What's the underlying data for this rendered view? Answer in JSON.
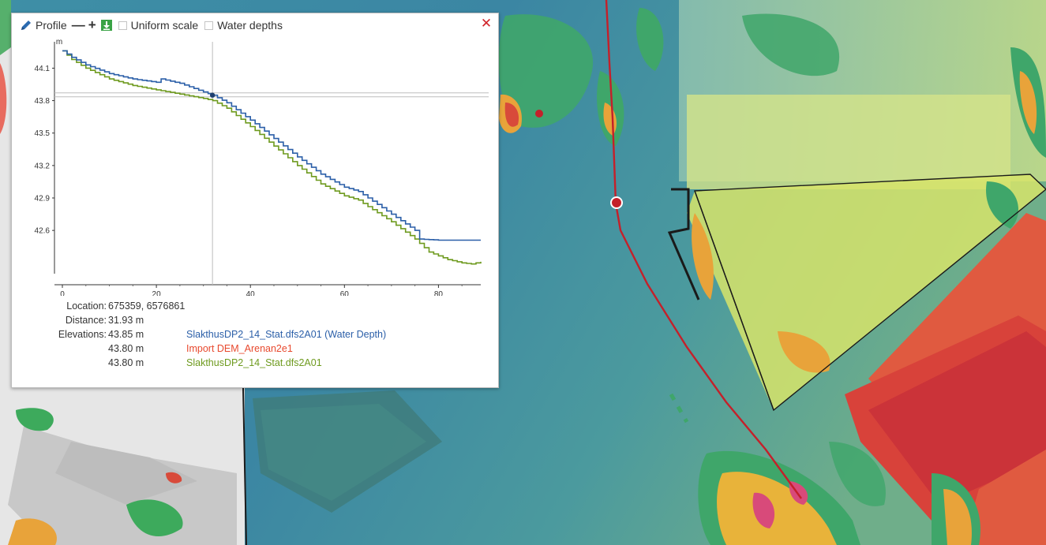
{
  "profile_panel": {
    "title": "Profile",
    "minus_label": "—",
    "plus_label": "+",
    "download_icon": "download-icon",
    "uniform_scale_label": "Uniform scale",
    "uniform_scale_checked": false,
    "water_depths_label": "Water depths",
    "water_depths_checked": false,
    "close_label": "✕"
  },
  "chart_data": {
    "type": "line",
    "ylabel": "m",
    "xlabel": "",
    "xlim": [
      0,
      89
    ],
    "ylim": [
      42.2,
      44.3
    ],
    "x_ticks": [
      0,
      20,
      40,
      60,
      80
    ],
    "y_ticks": [
      44.1,
      43.8,
      43.5,
      43.2,
      42.9,
      42.6
    ],
    "grid": false,
    "cursor": {
      "x": 31.93,
      "y": 43.85
    },
    "series": [
      {
        "name": "SlakthusDP2_14_Stat.dfs2A01 (Water Depth)",
        "color": "#2b5fa8",
        "x": [
          0,
          2,
          5,
          10,
          15,
          20,
          21,
          25,
          30,
          32,
          35,
          40,
          45,
          50,
          55,
          60,
          63,
          65,
          70,
          75,
          76,
          80,
          85,
          89
        ],
        "y": [
          44.26,
          44.2,
          44.13,
          44.05,
          44.0,
          43.97,
          44.0,
          43.96,
          43.88,
          43.85,
          43.78,
          43.62,
          43.45,
          43.28,
          43.12,
          43.0,
          42.96,
          42.9,
          42.75,
          42.6,
          42.52,
          42.51,
          42.51,
          42.51
        ]
      },
      {
        "name": "SlakthusDP2_14_Stat.dfs2A01",
        "color": "#6e9a1e",
        "x": [
          0,
          2,
          5,
          10,
          15,
          20,
          25,
          30,
          32,
          35,
          40,
          45,
          50,
          55,
          60,
          63,
          65,
          70,
          75,
          78,
          82,
          85,
          87,
          89
        ],
        "y": [
          44.26,
          44.18,
          44.1,
          44.0,
          43.94,
          43.9,
          43.86,
          43.82,
          43.8,
          43.73,
          43.56,
          43.38,
          43.2,
          43.03,
          42.92,
          42.88,
          42.82,
          42.68,
          42.52,
          42.4,
          42.33,
          42.3,
          42.29,
          42.31
        ]
      }
    ]
  },
  "readout": {
    "location_label": "Location:",
    "location_value": "675359, 6576861",
    "distance_label": "Distance:",
    "distance_value": "31.93 m",
    "elevations_label": "Elevations:",
    "elevations": [
      {
        "value": "43.85 m",
        "series": "SlakthusDP2_14_Stat.dfs2A01 (Water Depth)",
        "color": "#2b5fa8"
      },
      {
        "value": "43.80 m",
        "series": "Import DEM_Arenan2e1",
        "color": "#e8492e"
      },
      {
        "value": "43.80 m",
        "series": "SlakthusDP2_14_Stat.dfs2A01",
        "color": "#6e9a1e"
      }
    ]
  },
  "map": {
    "profile_line_color": "#c4202a",
    "polygon_outline_color": "#1a1a1a"
  }
}
